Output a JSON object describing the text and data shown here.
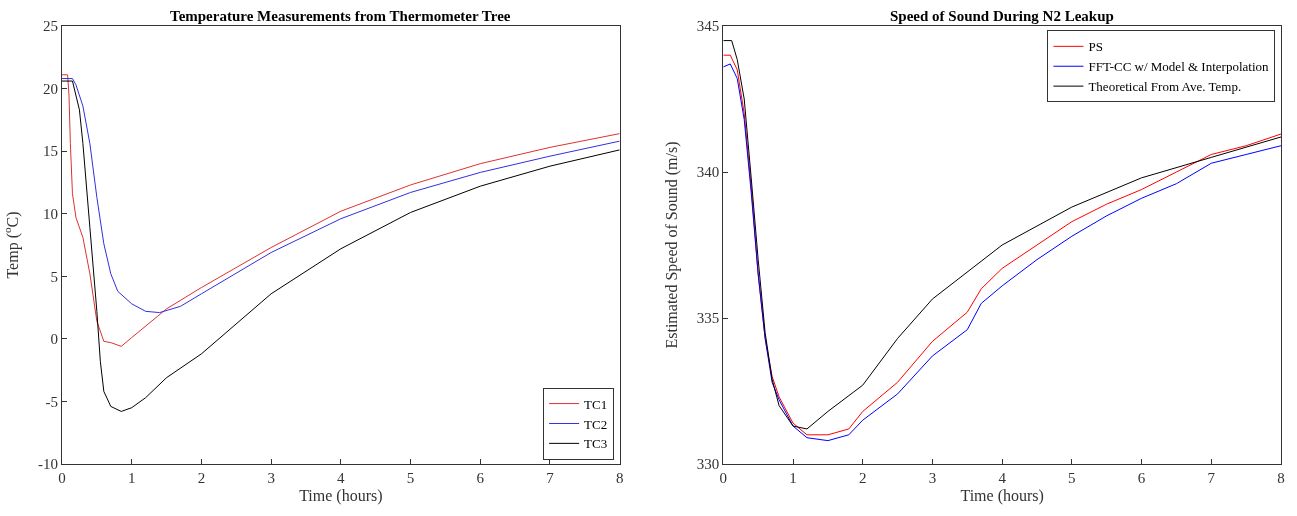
{
  "chart_data": [
    {
      "type": "line",
      "title": "Temperature Measurements from Thermometer Tree",
      "xlabel": "Time (hours)",
      "ylabel": "Temp ($^{o}$C)",
      "xlim": [
        0,
        8
      ],
      "xticks": [
        0,
        1,
        2,
        3,
        4,
        5,
        6,
        7,
        8
      ],
      "ylim": [
        -10,
        25
      ],
      "yticks": [
        -10,
        -5,
        0,
        5,
        10,
        15,
        20,
        25
      ],
      "legend": "bottom right",
      "marker": "none",
      "line_style": "solid",
      "series": [
        {
          "name": "TC1",
          "color": "#e03030",
          "x": [
            0,
            0.08,
            0.1,
            0.12,
            0.15,
            0.2,
            0.3,
            0.4,
            0.5,
            0.6,
            0.7,
            0.85,
            1.0,
            1.5,
            2,
            3,
            4,
            5,
            6,
            7,
            8
          ],
          "values": [
            21.1,
            21.1,
            19.5,
            15.6,
            11.6,
            9.7,
            8.1,
            5.2,
            1.4,
            -0.2,
            -0.3,
            -0.6,
            0.1,
            2.4,
            4.1,
            7.3,
            10.2,
            12.3,
            14.0,
            15.3,
            16.4
          ]
        },
        {
          "name": "TC2",
          "color": "#3030e0",
          "x": [
            0,
            0.15,
            0.2,
            0.3,
            0.4,
            0.5,
            0.6,
            0.7,
            0.8,
            1.0,
            1.2,
            1.4,
            1.7,
            2,
            3,
            4,
            5,
            6,
            7,
            8
          ],
          "values": [
            20.8,
            20.8,
            20.3,
            18.6,
            15.6,
            11.3,
            7.6,
            5.2,
            3.8,
            2.8,
            2.2,
            2.1,
            2.6,
            3.6,
            6.9,
            9.6,
            11.7,
            13.3,
            14.6,
            15.8
          ]
        },
        {
          "name": "TC3",
          "color": "#000000",
          "x": [
            0,
            0.15,
            0.25,
            0.3,
            0.4,
            0.5,
            0.55,
            0.6,
            0.7,
            0.85,
            1.0,
            1.2,
            1.5,
            2,
            3,
            4,
            5,
            6,
            7,
            8
          ],
          "values": [
            20.6,
            20.6,
            18.3,
            15.6,
            8.9,
            2.2,
            -1.8,
            -4.2,
            -5.4,
            -5.8,
            -5.5,
            -4.7,
            -3.1,
            -1.2,
            3.6,
            7.2,
            10.1,
            12.2,
            13.8,
            15.1
          ]
        }
      ]
    },
    {
      "type": "line",
      "title": "Speed of Sound During N2 Leakup",
      "xlabel": "Time (hours)",
      "ylabel": "Estimated Speed of Sound (m/s)",
      "xlim": [
        0,
        8
      ],
      "xticks": [
        0,
        1,
        2,
        3,
        4,
        5,
        6,
        7,
        8
      ],
      "ylim": [
        330,
        345
      ],
      "yticks": [
        330,
        335,
        340,
        345
      ],
      "legend": "top right",
      "marker": "none",
      "line_style": "solid",
      "series": [
        {
          "name": "PS",
          "color": "#ff0000",
          "x": [
            0,
            0.1,
            0.2,
            0.3,
            0.4,
            0.5,
            0.6,
            0.7,
            0.8,
            1,
            1.2,
            1.5,
            1.8,
            2,
            2.5,
            3,
            3.5,
            3.7,
            4,
            4.5,
            5,
            5.5,
            6,
            6.5,
            7,
            7.5,
            8
          ],
          "values": [
            344,
            344,
            343.5,
            342,
            339.5,
            336.5,
            334.3,
            333,
            332.3,
            331.4,
            331.0,
            331.0,
            331.2,
            331.8,
            332.8,
            334.2,
            335.2,
            336,
            336.7,
            337.5,
            338.3,
            338.9,
            339.4,
            340,
            340.6,
            340.9,
            341.3
          ]
        },
        {
          "name": "FFT-CC w/ Model & Interpolation",
          "color": "#0000ff",
          "x": [
            0,
            0.1,
            0.2,
            0.3,
            0.4,
            0.5,
            0.6,
            0.7,
            0.8,
            1,
            1.2,
            1.5,
            1.8,
            2,
            2.5,
            3,
            3.5,
            3.7,
            4,
            4.5,
            5,
            5.5,
            6,
            6.5,
            7,
            7.5,
            8
          ],
          "values": [
            343.6,
            343.7,
            343.2,
            341.8,
            339.3,
            336.5,
            334.3,
            332.8,
            332.2,
            331.3,
            330.9,
            330.8,
            331,
            331.5,
            332.4,
            333.7,
            334.6,
            335.5,
            336.1,
            337,
            337.8,
            338.5,
            339.1,
            339.6,
            340.3,
            340.6,
            340.9
          ]
        },
        {
          "name": "Theoretical From Ave. Temp.",
          "color": "#000000",
          "x": [
            0,
            0.12,
            0.2,
            0.3,
            0.4,
            0.5,
            0.6,
            0.7,
            0.8,
            1.0,
            1.2,
            1.5,
            2,
            2.5,
            3,
            4,
            5,
            6,
            7,
            8
          ],
          "values": [
            344.5,
            344.5,
            343.85,
            342.5,
            339.8,
            337,
            334.5,
            332.9,
            332,
            331.3,
            331.2,
            331.8,
            332.7,
            334.3,
            335.65,
            337.5,
            338.8,
            339.8,
            340.5,
            341.2
          ]
        }
      ]
    }
  ]
}
